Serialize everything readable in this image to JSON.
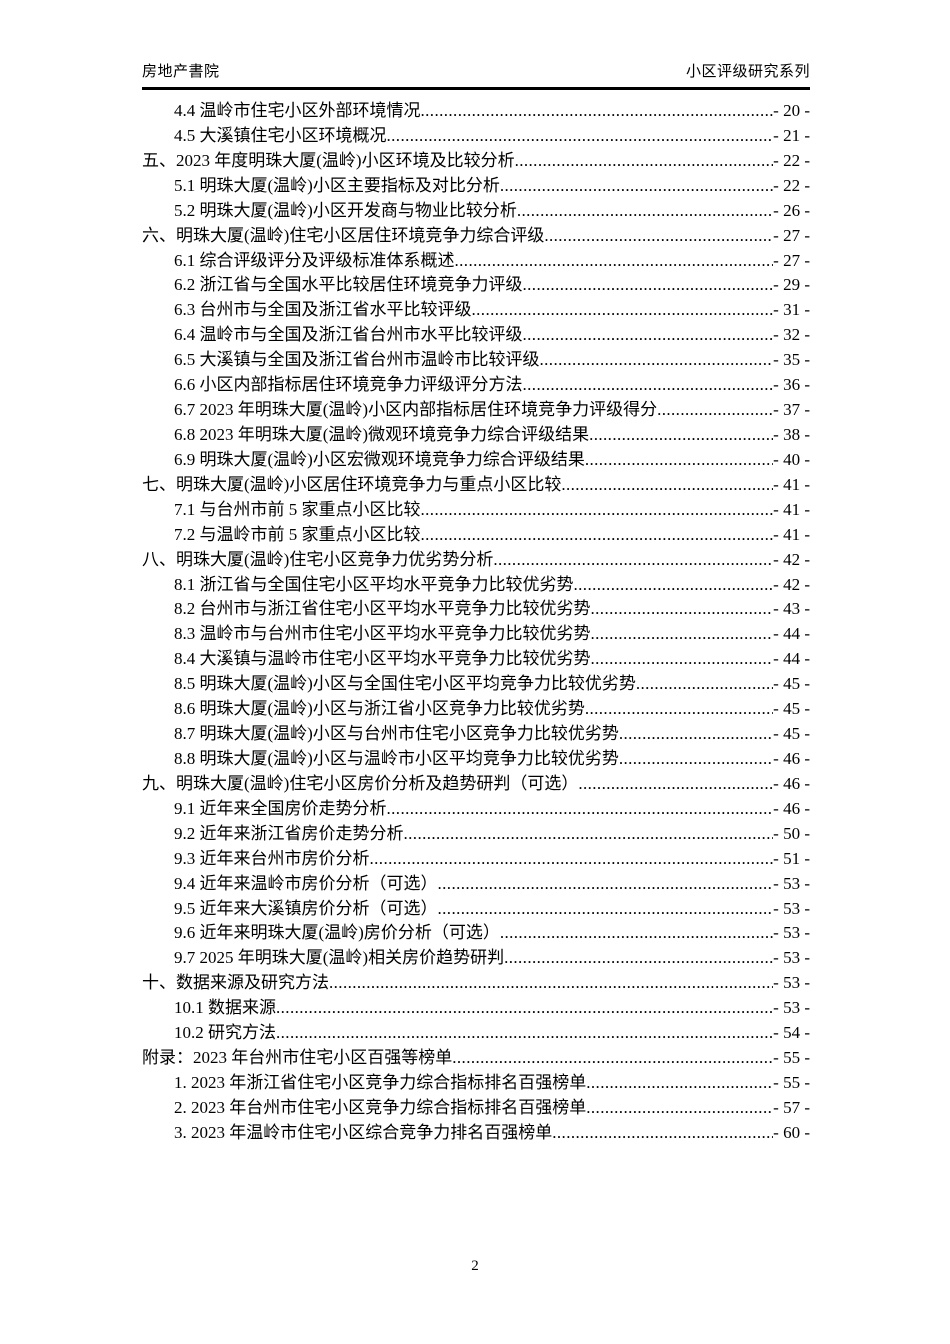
{
  "header": {
    "left": "房地产書院",
    "right": "小区评级研究系列"
  },
  "toc": {
    "entries": [
      {
        "level": 1,
        "title": "4.4 温岭市住宅小区外部环境情况",
        "page": "- 20 -"
      },
      {
        "level": 1,
        "title": "4.5 大溪镇住宅小区环境概况",
        "page": "- 21 -"
      },
      {
        "level": 0,
        "title": "五、2023 年度明珠大厦(温岭)小区环境及比较分析",
        "page": "- 22 -"
      },
      {
        "level": 1,
        "title": "5.1 明珠大厦(温岭)小区主要指标及对比分析",
        "page": "- 22 -"
      },
      {
        "level": 1,
        "title": "5.2 明珠大厦(温岭)小区开发商与物业比较分析",
        "page": "- 26 -"
      },
      {
        "level": 0,
        "title": "六、明珠大厦(温岭)住宅小区居住环境竞争力综合评级",
        "page": "- 27 -"
      },
      {
        "level": 1,
        "title": "6.1 综合评级评分及评级标准体系概述",
        "page": "- 27 -"
      },
      {
        "level": 1,
        "title": "6.2 浙江省与全国水平比较居住环境竞争力评级",
        "page": "- 29 -"
      },
      {
        "level": 1,
        "title": "6.3 台州市与全国及浙江省水平比较评级",
        "page": "- 31 -"
      },
      {
        "level": 1,
        "title": "6.4 温岭市与全国及浙江省台州市水平比较评级",
        "page": "- 32 -"
      },
      {
        "level": 1,
        "title": "6.5 大溪镇与全国及浙江省台州市温岭市比较评级",
        "page": "- 35 -"
      },
      {
        "level": 1,
        "title": "6.6 小区内部指标居住环境竞争力评级评分方法",
        "page": "- 36 -"
      },
      {
        "level": 1,
        "title": "6.7 2023 年明珠大厦(温岭)小区内部指标居住环境竞争力评级得分",
        "page": "- 37 -"
      },
      {
        "level": 1,
        "title": "6.8 2023 年明珠大厦(温岭)微观环境竞争力综合评级结果",
        "page": "- 38 -"
      },
      {
        "level": 1,
        "title": "6.9 明珠大厦(温岭)小区宏微观环境竞争力综合评级结果",
        "page": "- 40 -"
      },
      {
        "level": 0,
        "title": "七、明珠大厦(温岭)小区居住环境竞争力与重点小区比较",
        "page": "- 41 -"
      },
      {
        "level": 1,
        "title": "7.1 与台州市前 5 家重点小区比较",
        "page": "- 41 -"
      },
      {
        "level": 1,
        "title": "7.2 与温岭市前 5 家重点小区比较",
        "page": "- 41 -"
      },
      {
        "level": 0,
        "title": "八、明珠大厦(温岭)住宅小区竞争力优劣势分析",
        "page": "- 42 -"
      },
      {
        "level": 1,
        "title": "8.1 浙江省与全国住宅小区平均水平竞争力比较优劣势",
        "page": "- 42 -"
      },
      {
        "level": 1,
        "title": "8.2 台州市与浙江省住宅小区平均水平竞争力比较优劣势",
        "page": "- 43 -"
      },
      {
        "level": 1,
        "title": "8.3 温岭市与台州市住宅小区平均水平竞争力比较优劣势",
        "page": "- 44 -"
      },
      {
        "level": 1,
        "title": "8.4 大溪镇与温岭市住宅小区平均水平竞争力比较优劣势",
        "page": "- 44 -"
      },
      {
        "level": 1,
        "title": "8.5 明珠大厦(温岭)小区与全国住宅小区平均竞争力比较优劣势",
        "page": "- 45 -"
      },
      {
        "level": 1,
        "title": "8.6 明珠大厦(温岭)小区与浙江省小区竞争力比较优劣势",
        "page": "- 45 -"
      },
      {
        "level": 1,
        "title": "8.7 明珠大厦(温岭)小区与台州市住宅小区竞争力比较优劣势",
        "page": "- 45 -"
      },
      {
        "level": 1,
        "title": "8.8 明珠大厦(温岭)小区与温岭市小区平均竞争力比较优劣势",
        "page": "- 46 -"
      },
      {
        "level": 0,
        "title": "九、明珠大厦(温岭)住宅小区房价分析及趋势研判（可选） ",
        "page": "- 46 -"
      },
      {
        "level": 1,
        "title": "9.1 近年来全国房价走势分析",
        "page": "- 46 -"
      },
      {
        "level": 1,
        "title": "9.2 近年来浙江省房价走势分析",
        "page": "- 50 -"
      },
      {
        "level": 1,
        "title": "9.3 近年来台州市房价分析",
        "page": "- 51 -"
      },
      {
        "level": 1,
        "title": "9.4 近年来温岭市房价分析（可选） ",
        "page": "- 53 -"
      },
      {
        "level": 1,
        "title": "9.5 近年来大溪镇房价分析（可选） ",
        "page": "- 53 -"
      },
      {
        "level": 1,
        "title": "9.6 近年来明珠大厦(温岭)房价分析（可选） ",
        "page": "- 53 -"
      },
      {
        "level": 1,
        "title": "9.7 2025 年明珠大厦(温岭)相关房价趋势研判",
        "page": "- 53 -"
      },
      {
        "level": 0,
        "title": "十、数据来源及研究方法",
        "page": "- 53 -"
      },
      {
        "level": 1,
        "title": "10.1 数据来源",
        "page": "- 53 -"
      },
      {
        "level": 1,
        "title": "10.2 研究方法",
        "page": "- 54 -"
      },
      {
        "level": 0,
        "title": "附录：2023 年台州市住宅小区百强等榜单",
        "page": "- 55 -"
      },
      {
        "level": 1,
        "title": "1. 2023 年浙江省住宅小区竞争力综合指标排名百强榜单",
        "page": "- 55 -"
      },
      {
        "level": 1,
        "title": "2. 2023 年台州市住宅小区竞争力综合指标排名百强榜单",
        "page": "- 57 -"
      },
      {
        "level": 1,
        "title": "3. 2023 年温岭市住宅小区综合竞争力排名百强榜单",
        "page": "- 60 -"
      }
    ]
  },
  "footer": {
    "page_number": "2"
  },
  "colors": {
    "text": "#000000",
    "background": "#ffffff",
    "rule": "#000000"
  }
}
